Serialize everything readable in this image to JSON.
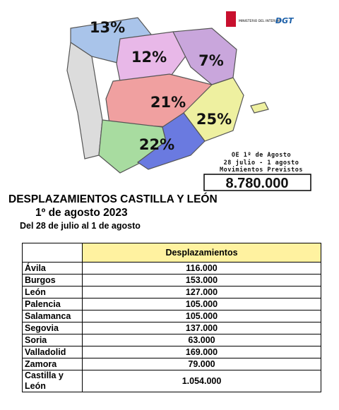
{
  "map": {
    "labels": [
      "13%",
      "12%",
      "7%",
      "21%",
      "25%",
      "22%"
    ]
  },
  "logos": {
    "ministry": "MINISTERIO DEL INTERIOR",
    "dgt": "DGT"
  },
  "forecast": {
    "line1": "OE 1º de Agosto",
    "line2": "28 julio - 1 agosto",
    "line3": "Movimientos Previstos",
    "total": "8.780.000"
  },
  "header": {
    "title": "DESPLAZAMIENTOS CASTILLA Y LEÓN",
    "date": "1º de agosto 2023",
    "subtitle": "Del 28 de julio al 1 de agosto"
  },
  "table": {
    "columns": [
      "",
      "Desplazamientos"
    ],
    "rows": [
      [
        "Ávila",
        "116.000"
      ],
      [
        "Burgos",
        "153.000"
      ],
      [
        "León",
        "127.000"
      ],
      [
        "Palencia",
        "105.000"
      ],
      [
        "Salamanca",
        "105.000"
      ],
      [
        "Segovia",
        "137.000"
      ],
      [
        "Soria",
        "63.000"
      ],
      [
        "Valladolid",
        "169.000"
      ],
      [
        "Zamora",
        "79.000"
      ],
      [
        "Castilla y León",
        "1.054.000"
      ]
    ]
  }
}
